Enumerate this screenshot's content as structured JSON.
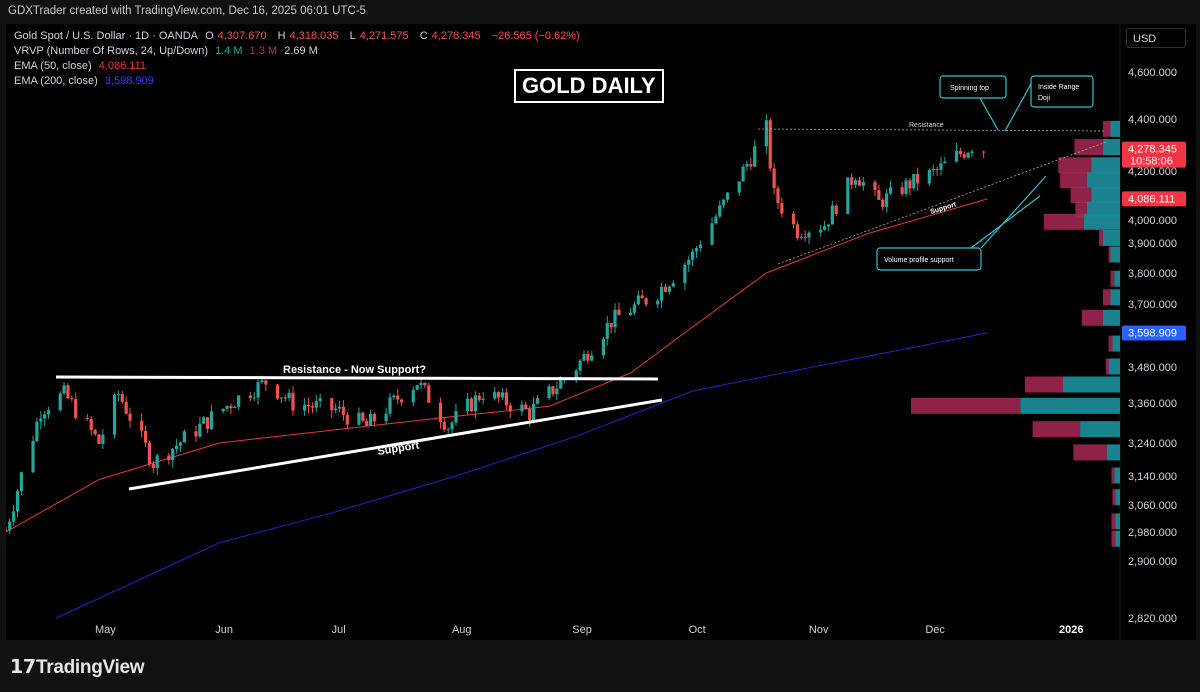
{
  "header": {
    "attribution": "GDXTrader created with TradingView.com, Dec 16, 2025 06:01 UTC-5"
  },
  "legend": {
    "symbol": "Gold Spot / U.S. Dollar · 1D · OANDA",
    "o_label": "O",
    "o": "4,307.670",
    "h_label": "H",
    "h": "4,318.035",
    "l_label": "L",
    "l": "4,271.575",
    "c_label": "C",
    "c": "4,278.345",
    "change": "−26.565 (−0.62%)",
    "vrvp": "VRVP (Number Of Rows, 24, Up/Down)",
    "vrvp_v1": "1.4 M",
    "vrvp_v2": "1.3 M",
    "vrvp_v3": "2.69 M",
    "ema50": "EMA (50, close)",
    "ema50_val": "4,086.111",
    "ema200": "EMA (200, close)",
    "ema200_val": "3,598.909"
  },
  "currency": "USD",
  "branding": {
    "logo_text": "TradingView"
  },
  "colors": {
    "up": "#26a69a",
    "down": "#ef5350",
    "ema50": "#e53935",
    "ema200": "#2323c8",
    "bg": "#000000"
  },
  "chart_data": {
    "type": "candlestick",
    "title": "GOLD DAILY",
    "y_ticks": [
      2820,
      2900,
      2980,
      3060,
      3140,
      3240,
      3360,
      3480,
      3700,
      3800,
      3900,
      4000,
      4200,
      4400,
      4600
    ],
    "y_tick_labels": [
      "2,820.000",
      "2,900.000",
      "2,980.000",
      "3,060.000",
      "3,140.000",
      "3,240.000",
      "3,360.000",
      "3,480.000",
      "3,700.000",
      "3,800.000",
      "3,900.000",
      "4,000.000",
      "4,200.000",
      "4,400.000",
      "4,600.000"
    ],
    "x_ticks": [
      "May",
      "Jun",
      "Jul",
      "Aug",
      "Sep",
      "Oct",
      "Nov",
      "Dec",
      "2026"
    ],
    "price_labels": [
      {
        "value": 4278.345,
        "text": "4,278.345",
        "sub": "10:58:06",
        "color": "#f23645"
      },
      {
        "value": 4086.111,
        "text": "4,086.111",
        "color": "#f23645"
      },
      {
        "value": 3598.909,
        "text": "3,598.909",
        "color": "#2962ff"
      }
    ],
    "anchors": [
      {
        "date": "2025-04-07",
        "close": 2985
      },
      {
        "date": "2025-04-16",
        "close": 3340
      },
      {
        "date": "2025-04-22",
        "close": 3390
      },
      {
        "date": "2025-05-01",
        "close": 3240
      },
      {
        "date": "2025-05-06",
        "close": 3390
      },
      {
        "date": "2025-05-15",
        "close": 3180
      },
      {
        "date": "2025-06-05",
        "close": 3370
      },
      {
        "date": "2025-06-13",
        "close": 3430
      },
      {
        "date": "2025-06-20",
        "close": 3360
      },
      {
        "date": "2025-07-01",
        "close": 3340
      },
      {
        "date": "2025-07-09",
        "close": 3290
      },
      {
        "date": "2025-07-22",
        "close": 3430
      },
      {
        "date": "2025-07-30",
        "close": 3290
      },
      {
        "date": "2025-08-08",
        "close": 3395
      },
      {
        "date": "2025-08-20",
        "close": 3330
      },
      {
        "date": "2025-09-01",
        "close": 3480
      },
      {
        "date": "2025-09-10",
        "close": 3640
      },
      {
        "date": "2025-09-22",
        "close": 3740
      },
      {
        "date": "2025-10-01",
        "close": 3860
      },
      {
        "date": "2025-10-08",
        "close": 4040
      },
      {
        "date": "2025-10-20",
        "close": 4360
      },
      {
        "date": "2025-10-22",
        "close": 4100
      },
      {
        "date": "2025-10-28",
        "close": 3950
      },
      {
        "date": "2025-11-04",
        "close": 3980
      },
      {
        "date": "2025-11-12",
        "close": 4190
      },
      {
        "date": "2025-11-18",
        "close": 4070
      },
      {
        "date": "2025-11-25",
        "close": 4140
      },
      {
        "date": "2025-12-03",
        "close": 4200
      },
      {
        "date": "2025-12-12",
        "close": 4300
      },
      {
        "date": "2025-12-16",
        "close": 4278
      }
    ],
    "ema50_series": [
      {
        "date": "2025-04-07",
        "value": 2980
      },
      {
        "date": "2025-05-01",
        "value": 3130
      },
      {
        "date": "2025-06-01",
        "value": 3240
      },
      {
        "date": "2025-07-01",
        "value": 3280
      },
      {
        "date": "2025-08-01",
        "value": 3320
      },
      {
        "date": "2025-08-25",
        "value": 3350
      },
      {
        "date": "2025-09-15",
        "value": 3460
      },
      {
        "date": "2025-10-01",
        "value": 3620
      },
      {
        "date": "2025-10-20",
        "value": 3800
      },
      {
        "date": "2025-11-15",
        "value": 3940
      },
      {
        "date": "2025-12-16",
        "value": 4086
      }
    ],
    "ema200_series": [
      {
        "date": "2025-04-20",
        "value": 2820
      },
      {
        "date": "2025-06-01",
        "value": 2950
      },
      {
        "date": "2025-07-01",
        "value": 3040
      },
      {
        "date": "2025-08-01",
        "value": 3140
      },
      {
        "date": "2025-09-01",
        "value": 3260
      },
      {
        "date": "2025-10-01",
        "value": 3400
      },
      {
        "date": "2025-11-01",
        "value": 3480
      },
      {
        "date": "2025-12-16",
        "value": 3599
      }
    ],
    "volume_profile": [
      {
        "price": 4360,
        "up": 10,
        "down": 8
      },
      {
        "price": 4290,
        "up": 18,
        "down": 30
      },
      {
        "price": 4220,
        "up": 30,
        "down": 35
      },
      {
        "price": 4160,
        "up": 35,
        "down": 28
      },
      {
        "price": 4100,
        "up": 30,
        "down": 22
      },
      {
        "price": 4040,
        "up": 35,
        "down": 12
      },
      {
        "price": 3990,
        "up": 38,
        "down": 42
      },
      {
        "price": 3920,
        "up": 18,
        "down": 4
      },
      {
        "price": 3860,
        "up": 10,
        "down": 2
      },
      {
        "price": 3780,
        "up": 6,
        "down": 4
      },
      {
        "price": 3720,
        "up": 10,
        "down": 8
      },
      {
        "price": 3650,
        "up": 18,
        "down": 22
      },
      {
        "price": 3560,
        "up": 8,
        "down": 4
      },
      {
        "price": 3480,
        "up": 12,
        "down": 3
      },
      {
        "price": 3420,
        "up": 60,
        "down": 40
      },
      {
        "price": 3350,
        "up": 105,
        "down": 115
      },
      {
        "price": 3280,
        "up": 42,
        "down": 50
      },
      {
        "price": 3210,
        "up": 14,
        "down": 35
      },
      {
        "price": 3140,
        "up": 6,
        "down": 3
      },
      {
        "price": 3080,
        "up": 5,
        "down": 3
      },
      {
        "price": 3010,
        "up": 5,
        "down": 4
      },
      {
        "price": 2960,
        "up": 5,
        "down": 4
      }
    ],
    "annotations": {
      "resistance_support_label": "Resistance - Now Support?",
      "support_label": "Support",
      "resistance_small": "Resistance",
      "support_small": "Support",
      "spinning_top": "Spinning top",
      "inside_range_doji_1": "Inside Range",
      "inside_range_doji_2": "Doji",
      "volume_profile_support": "Volume profile support"
    }
  }
}
